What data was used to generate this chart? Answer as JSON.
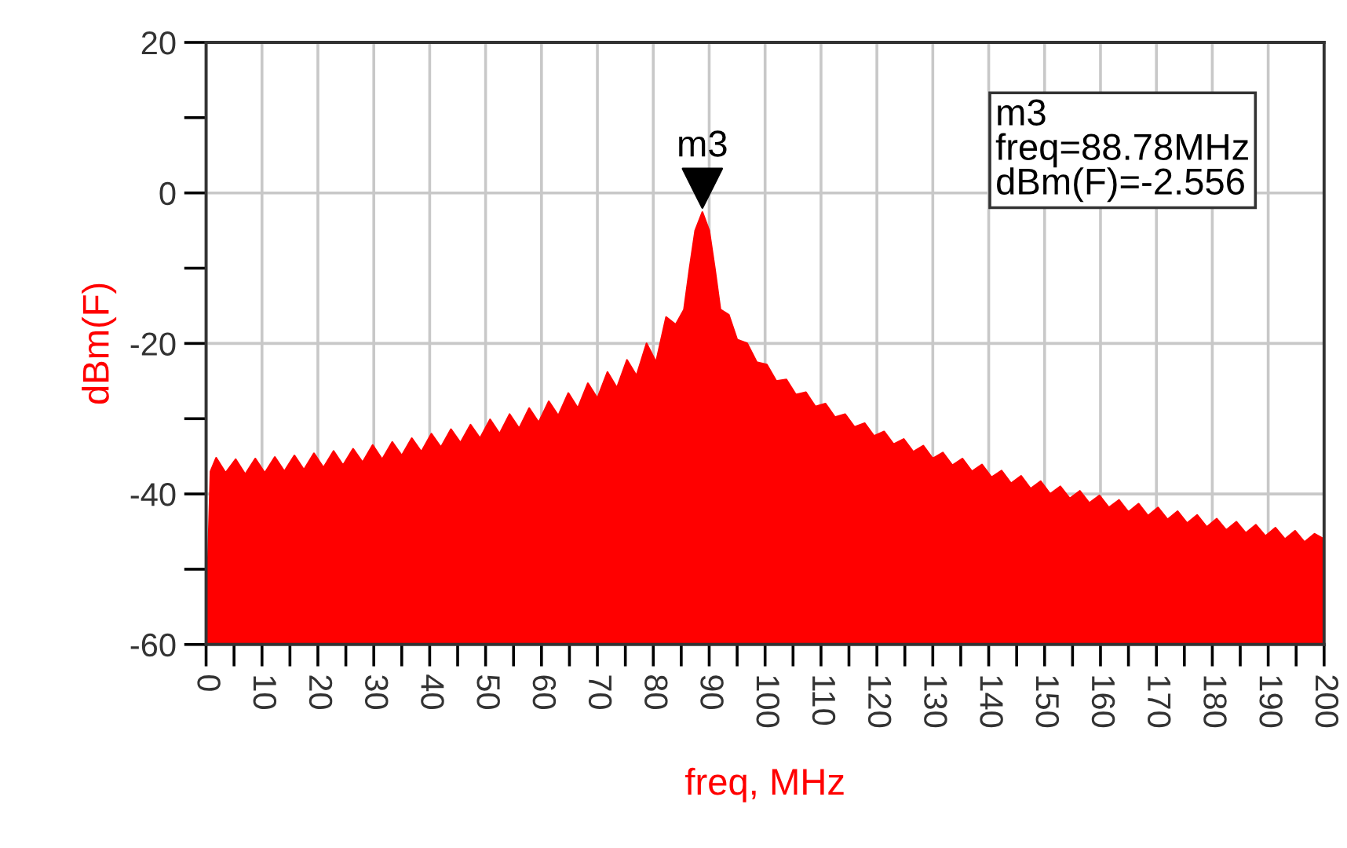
{
  "chart_data": {
    "type": "area",
    "xlabel": "freq, MHz",
    "ylabel": "dBm(F)",
    "xlim": [
      0,
      200
    ],
    "ylim": [
      -60,
      20
    ],
    "xticks": [
      0,
      {
        "value": 5,
        "label": null
      },
      10,
      {
        "value": 15,
        "label": null
      },
      20,
      {
        "value": 25,
        "label": null
      },
      30,
      {
        "value": 35,
        "label": null
      },
      40,
      {
        "value": 45,
        "label": null
      },
      50,
      {
        "value": 55,
        "label": null
      },
      60,
      {
        "value": 65,
        "label": null
      },
      70,
      {
        "value": 75,
        "label": null
      },
      80,
      {
        "value": 85,
        "label": null
      },
      90,
      {
        "value": 95,
        "label": null
      },
      100,
      {
        "value": 105,
        "label": null
      },
      110,
      {
        "value": 115,
        "label": null
      },
      120,
      {
        "value": 125,
        "label": null
      },
      130,
      {
        "value": 135,
        "label": null
      },
      140,
      {
        "value": 145,
        "label": null
      },
      150,
      {
        "value": 155,
        "label": null
      },
      160,
      {
        "value": 165,
        "label": null
      },
      170,
      {
        "value": 175,
        "label": null
      },
      180,
      {
        "value": 185,
        "label": null
      },
      190,
      {
        "value": 195,
        "label": null
      },
      200
    ],
    "yticks": [
      -60,
      {
        "value": -50,
        "label": null
      },
      -40,
      {
        "value": -30,
        "label": null
      },
      -20,
      {
        "value": -10,
        "label": null
      },
      0,
      {
        "value": 10,
        "label": null
      },
      20
    ],
    "grid": true,
    "legend": false,
    "series": [
      {
        "color": "#ff0000",
        "x": [
          0,
          0.3,
          0.8,
          1.8,
          3.5,
          5.3,
          7,
          8.8,
          10.5,
          12.3,
          14,
          15.8,
          17.5,
          19.3,
          21,
          22.8,
          24.5,
          26.3,
          28,
          29.8,
          31.5,
          33.3,
          35,
          36.8,
          38.5,
          40.3,
          42,
          43.8,
          45.5,
          47.3,
          49,
          50.8,
          52.5,
          54.3,
          56,
          57.8,
          59.5,
          61.3,
          63,
          64.8,
          66.5,
          68.3,
          70,
          71.8,
          73.5,
          75.3,
          77,
          78.8,
          80.5,
          82.3,
          84,
          85.5,
          86.5,
          87.5,
          88.78,
          90,
          91,
          92,
          93.5,
          95,
          96.8,
          98.5,
          100.3,
          102,
          103.8,
          105.5,
          107.3,
          109,
          110.8,
          112.5,
          114.3,
          116,
          117.8,
          119.5,
          121.3,
          123,
          124.8,
          126.5,
          128.3,
          130,
          131.8,
          133.5,
          135.3,
          137,
          138.8,
          140.5,
          142.3,
          144,
          145.8,
          147.5,
          149.3,
          151,
          152.8,
          154.5,
          156.3,
          158,
          159.8,
          161.5,
          163.3,
          165,
          166.8,
          168.5,
          170.3,
          172,
          173.8,
          175.5,
          177.3,
          179,
          180.8,
          182.5,
          184.3,
          186,
          187.8,
          189.5,
          191.3,
          193,
          194.8,
          196.5,
          198.3,
          200,
          200
        ],
        "values": [
          -60,
          -50,
          -37,
          -35.2,
          -37.2,
          -35.4,
          -37.4,
          -35.3,
          -37.2,
          -35.1,
          -37,
          -34.9,
          -36.8,
          -34.6,
          -36.5,
          -34.3,
          -36.2,
          -34,
          -35.8,
          -33.5,
          -35.4,
          -33.1,
          -34.9,
          -32.6,
          -34.4,
          -32,
          -33.8,
          -31.4,
          -33.2,
          -30.8,
          -32.6,
          -30.1,
          -32,
          -29.4,
          -31.3,
          -28.6,
          -30.5,
          -27.7,
          -29.6,
          -26.6,
          -28.6,
          -25.3,
          -27.3,
          -23.8,
          -25.9,
          -22.2,
          -24.3,
          -20,
          -22.5,
          -16.5,
          -17.5,
          -15.5,
          -10,
          -5,
          -2.556,
          -5,
          -10,
          -15.5,
          -16.2,
          -19.5,
          -20,
          -22.5,
          -22.8,
          -25,
          -24.8,
          -26.8,
          -26.5,
          -28.4,
          -28,
          -29.8,
          -29.4,
          -31.1,
          -30.6,
          -32.3,
          -31.7,
          -33.4,
          -32.7,
          -34.4,
          -33.6,
          -35.3,
          -34.5,
          -36.2,
          -35.3,
          -37,
          -36.1,
          -37.8,
          -36.9,
          -38.6,
          -37.6,
          -39.3,
          -38.3,
          -40,
          -39,
          -40.6,
          -39.6,
          -41.2,
          -40.2,
          -41.8,
          -40.8,
          -42.4,
          -41.3,
          -42.9,
          -41.8,
          -43.4,
          -42.3,
          -43.9,
          -42.8,
          -44.4,
          -43.3,
          -44.8,
          -43.7,
          -45.2,
          -44.1,
          -45.6,
          -44.5,
          -46,
          -44.9,
          -46.4,
          -45.3,
          -46,
          -60
        ]
      }
    ],
    "annotations": [
      {
        "text": "m3",
        "x": 88.78,
        "y": -2.556
      },
      "m3\nfreq=88.78MHz\ndBm(F)=-2.556"
    ]
  }
}
